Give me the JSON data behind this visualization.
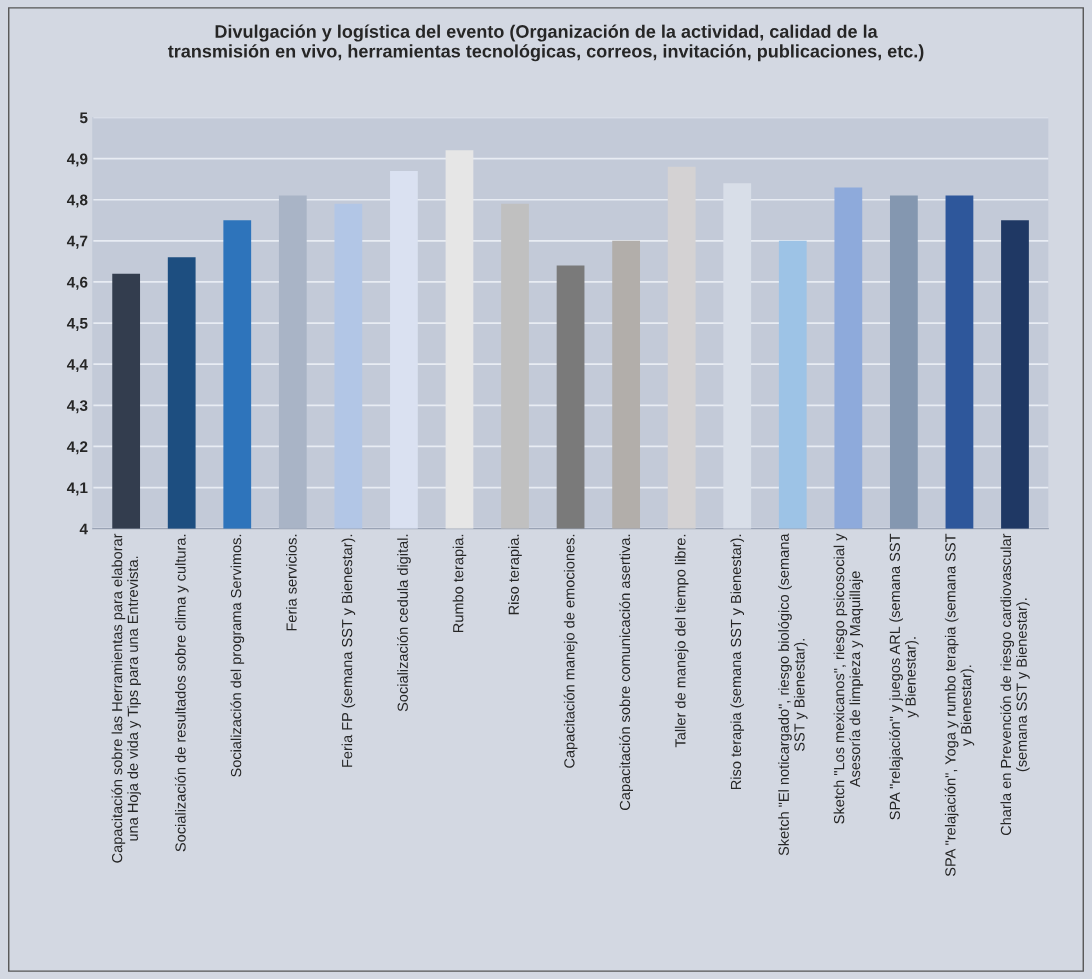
{
  "chart_data": {
    "type": "bar",
    "title": "Divulgación y logística del evento (Organización de la actividad, calidad de la\ntransmisión en vivo, herramientas tecnológicas, correos, invitación, publicaciones, etc.)",
    "categories": [
      "Capacitación sobre las Herramientas para elaborar\nuna Hoja de vida y Tips para una Entrevista.",
      "Socialización de resultados sobre clima y cultura.",
      "Socialización del programa Servimos.",
      "Feria servicios.",
      "Feria FP (semana SST y Bienestar).",
      "Socialización cedula digital.",
      "Rumbo terapia.",
      "Riso terapia.",
      "Capacitación manejo de emociones.",
      "Capacitación sobre comunicación asertiva.",
      "Taller de manejo del tiempo libre.",
      "Riso terapia (semana SST y Bienestar).",
      "Sketch \"El noticargado\", riesgo biológico (semana\nSST y Bienestar).",
      "Sketch \"Los mexicanos\", riesgo psicosocial y\nAsesoría de limpieza y Maquillaje",
      "SPA \"relajación\" y juegos ARL (semana SST\ny Bienestar).",
      "SPA \"relajación\", Yoga y rumbo terapia (semana SST\ny Bienestar).",
      "Charla en Prevención de riesgo cardiovascular\n(semana SST y Bienestar)."
    ],
    "values": [
      4.62,
      4.66,
      4.75,
      4.81,
      4.79,
      4.87,
      4.92,
      4.79,
      4.64,
      4.7,
      4.88,
      4.84,
      4.7,
      4.83,
      4.81,
      4.81,
      4.75
    ],
    "colors": [
      "#333d4e",
      "#1d4e80",
      "#2e74bb",
      "#a9b4c6",
      "#b2c6e6",
      "#dae1f1",
      "#e6e6e6",
      "#c0c0c0",
      "#7a7a7a",
      "#b2aeaa",
      "#d4d2d3",
      "#d8dee8",
      "#9dc3e6",
      "#8eaadb",
      "#8497b0",
      "#2e579b",
      "#1f3864"
    ],
    "ylim": [
      4,
      5
    ],
    "yticks": [
      4,
      {
        "value": 4.1,
        "label": "4,1"
      },
      {
        "value": 4.2,
        "label": "4,2"
      },
      {
        "value": 4.3,
        "label": "4,3"
      },
      {
        "value": 4.4,
        "label": "4,4"
      },
      {
        "value": 4.5,
        "label": "4,5"
      },
      {
        "value": 4.6,
        "label": "4,6"
      },
      {
        "value": 4.7,
        "label": "4,7"
      },
      {
        "value": 4.8,
        "label": "4,8"
      },
      {
        "value": 4.9,
        "label": "4,9"
      },
      5
    ],
    "grid": "y"
  }
}
